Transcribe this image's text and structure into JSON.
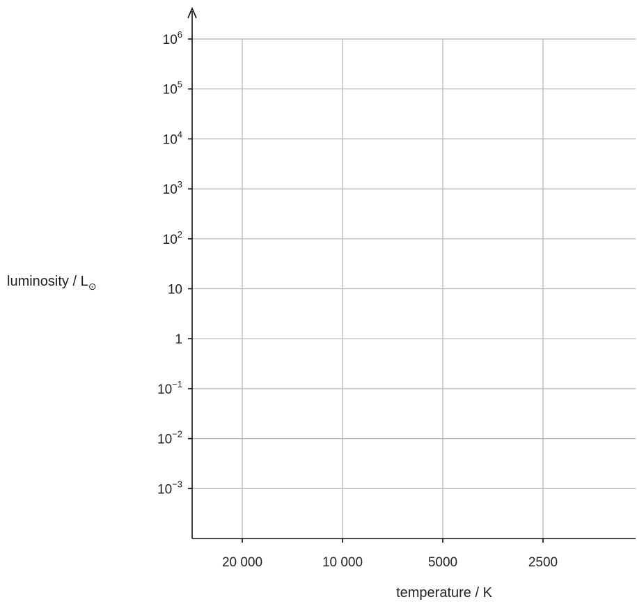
{
  "chart_data": {
    "type": "scatter",
    "title": "",
    "xlabel": "temperature / K",
    "ylabel": "luminosity / L",
    "ylabel_subscript": "⊙",
    "x_scale": "log-reversed",
    "y_scale": "log",
    "x_ticks": [
      {
        "value": 20000,
        "label": "20 000"
      },
      {
        "value": 10000,
        "label": "10 000"
      },
      {
        "value": 5000,
        "label": "5000"
      },
      {
        "value": 2500,
        "label": "2500"
      }
    ],
    "y_ticks": [
      {
        "exp": 6,
        "base": "10",
        "sup": "6"
      },
      {
        "exp": 5,
        "base": "10",
        "sup": "5"
      },
      {
        "exp": 4,
        "base": "10",
        "sup": "4"
      },
      {
        "exp": 3,
        "base": "10",
        "sup": "3"
      },
      {
        "exp": 2,
        "base": "10",
        "sup": "2"
      },
      {
        "exp": 1,
        "base": "10",
        "sup": ""
      },
      {
        "exp": 0,
        "base": "1",
        "sup": ""
      },
      {
        "exp": -1,
        "base": "10",
        "sup": "−1"
      },
      {
        "exp": -2,
        "base": "10",
        "sup": "−2"
      },
      {
        "exp": -3,
        "base": "10",
        "sup": "−3"
      }
    ],
    "grid": true,
    "series": []
  }
}
